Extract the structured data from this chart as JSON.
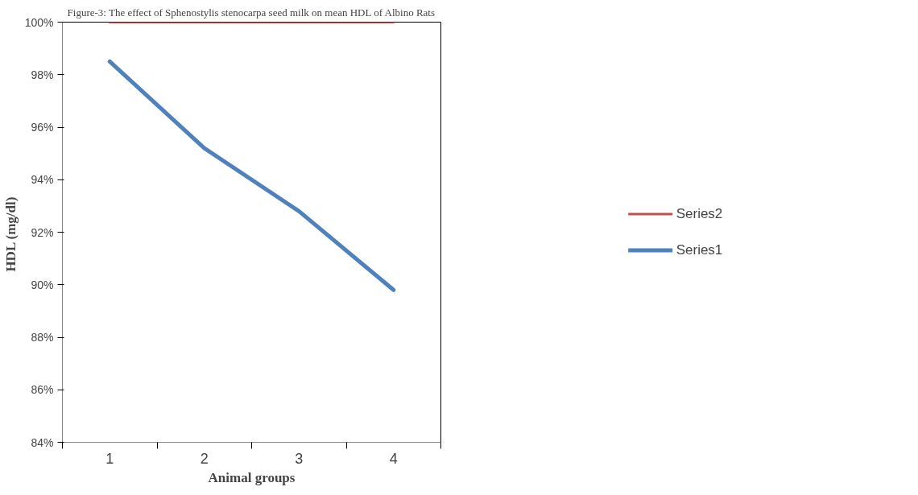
{
  "chart_data": {
    "type": "line",
    "title": "Figure-3: The effect of Sphenostylis stenocarpa seed milk on mean HDL of Albino Rats",
    "xlabel": "Animal groups",
    "ylabel": "HDL  (mg/dl)",
    "categories": [
      "1",
      "2",
      "3",
      "4"
    ],
    "series": [
      {
        "name": "Series2",
        "color": "#c0504d",
        "values": [
          100,
          100,
          100,
          100
        ]
      },
      {
        "name": "Series1",
        "color": "#4f81bd",
        "values": [
          98.5,
          95.2,
          92.8,
          89.8
        ]
      }
    ],
    "ylim": [
      84,
      100
    ],
    "yticks": [
      {
        "value": 84,
        "label": "84%"
      },
      {
        "value": 86,
        "label": "86%"
      },
      {
        "value": 88,
        "label": "88%"
      },
      {
        "value": 90,
        "label": "90%"
      },
      {
        "value": 92,
        "label": "92%"
      },
      {
        "value": 94,
        "label": "94%"
      },
      {
        "value": 96,
        "label": "96%"
      },
      {
        "value": 98,
        "label": "98%"
      },
      {
        "value": 100,
        "label": "100%"
      }
    ],
    "grid": false,
    "legend": "right",
    "marker": "none",
    "line_style": "solid"
  }
}
